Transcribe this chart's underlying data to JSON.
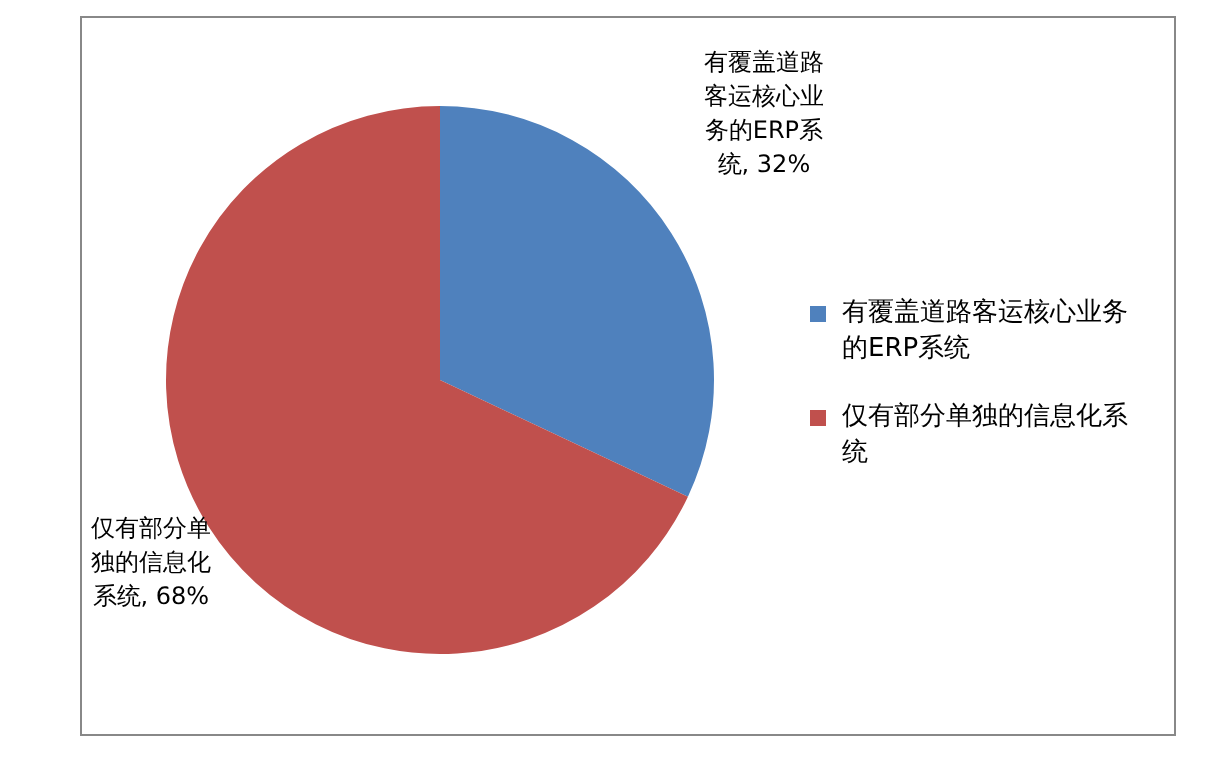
{
  "chart_data": {
    "type": "pie",
    "categories": [
      "有覆盖道路客运核心业务的ERP系统",
      "仅有部分单独的信息化系统"
    ],
    "values": [
      32,
      68
    ],
    "colors": [
      "#4f81bd",
      "#c0504d"
    ],
    "value_labels": [
      ", 32%",
      ", 68%"
    ],
    "legend": "right"
  }
}
